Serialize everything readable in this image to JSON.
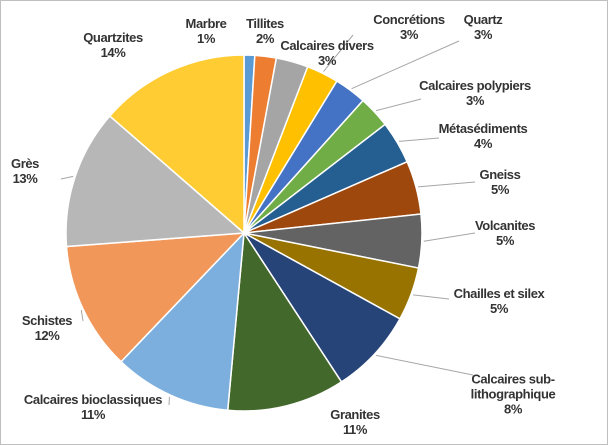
{
  "chart_data": {
    "type": "pie",
    "categories": [
      "Marbre",
      "Tillites",
      "Calcaires divers",
      "Concrétions",
      "Quartz",
      "Calcaires polypiers",
      "Métasédiments",
      "Gneiss",
      "Volcanites",
      "Chailles et silex",
      "Calcaires sub-lithographique",
      "Granites",
      "Calcaires bioclassiques",
      "Schistes",
      "Grès",
      "Quartzites"
    ],
    "values": [
      1,
      2,
      3,
      3,
      3,
      3,
      4,
      5,
      5,
      5,
      8,
      11,
      11,
      12,
      13,
      14
    ],
    "value_labels": [
      "1%",
      "2%",
      "3%",
      "3%",
      "3%",
      "3%",
      "4%",
      "5%",
      "5%",
      "5%",
      "8%",
      "11%",
      "11%",
      "12%",
      "13%",
      "14%"
    ],
    "colors": [
      "#5b9bd5",
      "#ed7d31",
      "#a5a5a5",
      "#ffc000",
      "#4472c4",
      "#70ad47",
      "#255e91",
      "#9e480e",
      "#636363",
      "#997300",
      "#264478",
      "#43682b",
      "#7cafdd",
      "#f1975a",
      "#b7b7b7",
      "#ffcd33"
    ]
  }
}
